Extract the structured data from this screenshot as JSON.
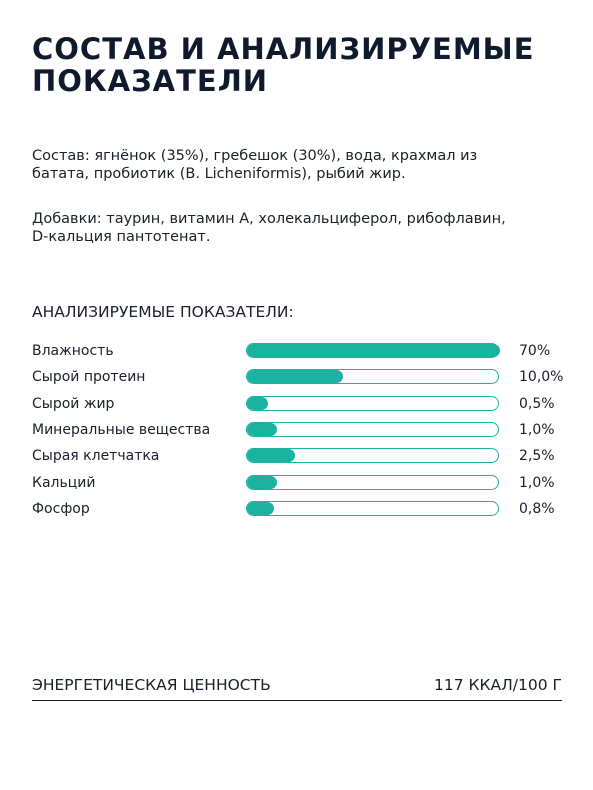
{
  "header": {
    "title": "СОСТАВ И АНАЛИЗИРУЕМЫЕ ПОКАЗАТЕЛИ"
  },
  "composition": "Состав: ягнёнок (35%), гребешок (30%), вода, крахмал из батата, пробиотик (B. Licheniformis), рыбий жир.",
  "additives": "Добавки: таурин, витамин А, холекальциферол, рибофлавин, D-кальция пантотенат.",
  "chart_data": {
    "type": "bar",
    "title": "АНАЛИЗИРУЕМЫЕ ПОКАЗАТЕЛИ:",
    "categories": [
      "Влажность",
      "Сырой протеин",
      "Сырой жир",
      "Минеральные вещества",
      "Сырая клетчатка",
      "Кальций",
      "Фосфор"
    ],
    "values": [
      70,
      10.0,
      0.5,
      1.0,
      2.5,
      1.0,
      0.8
    ],
    "value_labels": [
      "70%",
      "10,0%",
      "0,5%",
      "1,0%",
      "2,5%",
      "1,0%",
      "0,8%"
    ],
    "xlim": [
      0,
      70
    ],
    "scale": "sqrt",
    "color": "#1bb3a0"
  },
  "energy": {
    "label": "ЭНЕРГЕТИЧЕСКАЯ ЦЕННОСТЬ",
    "value": "117 ККАЛ/100 Г"
  }
}
